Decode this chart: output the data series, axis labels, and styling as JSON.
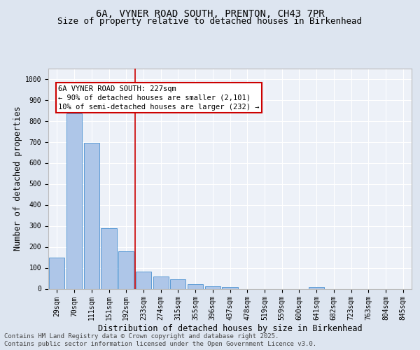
{
  "title_line1": "6A, VYNER ROAD SOUTH, PRENTON, CH43 7PR",
  "title_line2": "Size of property relative to detached houses in Birkenhead",
  "xlabel": "Distribution of detached houses by size in Birkenhead",
  "ylabel": "Number of detached properties",
  "categories": [
    "29sqm",
    "70sqm",
    "111sqm",
    "151sqm",
    "192sqm",
    "233sqm",
    "274sqm",
    "315sqm",
    "355sqm",
    "396sqm",
    "437sqm",
    "478sqm",
    "519sqm",
    "559sqm",
    "600sqm",
    "641sqm",
    "682sqm",
    "723sqm",
    "763sqm",
    "804sqm",
    "845sqm"
  ],
  "values": [
    150,
    835,
    695,
    288,
    178,
    82,
    59,
    44,
    22,
    12,
    8,
    0,
    0,
    0,
    0,
    10,
    0,
    0,
    0,
    0,
    0
  ],
  "bar_color": "#aec6e8",
  "bar_edge_color": "#5b9bd5",
  "vline_x_index": 4.5,
  "vline_color": "#cc0000",
  "annotation_line1": "6A VYNER ROAD SOUTH: 227sqm",
  "annotation_line2": "← 90% of detached houses are smaller (2,101)",
  "annotation_line3": "10% of semi-detached houses are larger (232) →",
  "annotation_box_color": "#cc0000",
  "ylim": [
    0,
    1050
  ],
  "yticks": [
    0,
    100,
    200,
    300,
    400,
    500,
    600,
    700,
    800,
    900,
    1000
  ],
  "footer_line1": "Contains HM Land Registry data © Crown copyright and database right 2025.",
  "footer_line2": "Contains public sector information licensed under the Open Government Licence v3.0.",
  "background_color": "#dde5f0",
  "plot_background": "#edf1f8",
  "grid_color": "#ffffff",
  "title_fontsize": 10,
  "subtitle_fontsize": 9,
  "axis_label_fontsize": 8.5,
  "tick_fontsize": 7,
  "annot_fontsize": 7.5,
  "footer_fontsize": 6.5
}
